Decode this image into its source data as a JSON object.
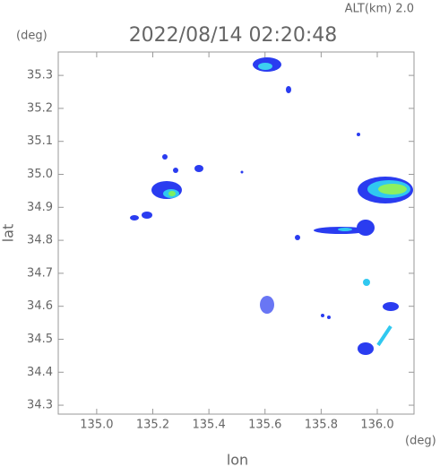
{
  "chart_data": {
    "type": "radar-map",
    "title": "2022/08/14 02:20:48",
    "altitude_label": "ALT(km) 2.0",
    "y_unit": "(deg)",
    "x_unit": "(deg)",
    "ylabel": "lat",
    "xlabel": "lon",
    "xlim": [
      134.863,
      136.131
    ],
    "ylim": [
      34.273,
      35.371
    ],
    "xticks": [
      {
        "value": 135.0,
        "label": "135.0"
      },
      135.2,
      135.4,
      135.6,
      135.8,
      {
        "value": 136.0,
        "label": "136.0"
      }
    ],
    "yticks": [
      34.3,
      34.4,
      34.5,
      34.6,
      34.7,
      34.8,
      34.9,
      {
        "value": 35.0,
        "label": "35.0"
      },
      35.1,
      35.2,
      35.3
    ]
  }
}
